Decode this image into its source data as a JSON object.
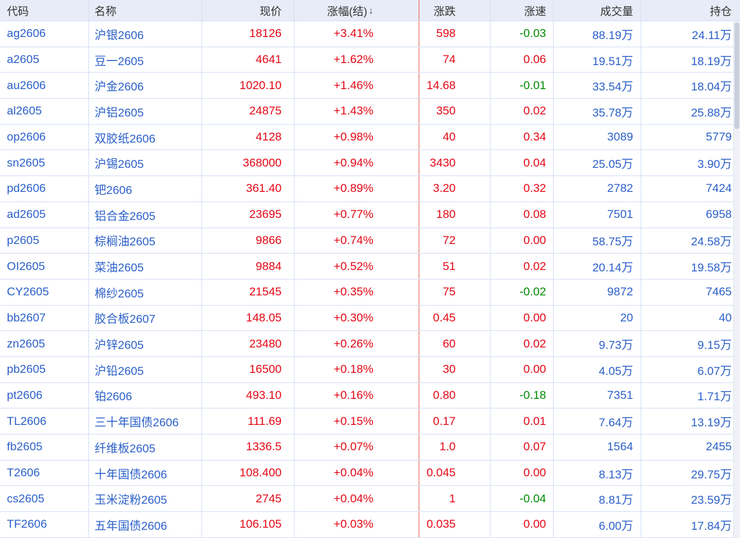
{
  "colors": {
    "header_bg": "#e8ecf8",
    "header_text": "#333333",
    "row_bg": "#ffffff",
    "grid_line": "#d7e1f4",
    "up_red": "#e30613",
    "down_green": "#008a00",
    "blue_text": "#2a5fc9",
    "sort_divider_red": "#e86a6a",
    "scrollbar_track": "#eff1f6",
    "scrollbar_thumb": "#c8cfde"
  },
  "table": {
    "columns": [
      {
        "key": "code",
        "label": "代码",
        "align": "left"
      },
      {
        "key": "name",
        "label": "名称",
        "align": "left"
      },
      {
        "key": "price",
        "label": "现价",
        "align": "right"
      },
      {
        "key": "pct",
        "label": "涨幅(结)",
        "align": "right",
        "sort": "desc",
        "sort_icon": "↓"
      },
      {
        "key": "chg",
        "label": "涨跌",
        "align": "right"
      },
      {
        "key": "speed",
        "label": "涨速",
        "align": "right"
      },
      {
        "key": "vol",
        "label": "成交量",
        "align": "right"
      },
      {
        "key": "oi",
        "label": "持仓",
        "align": "right"
      }
    ],
    "rows": [
      {
        "code": "ag2606",
        "name": "沪银2606",
        "price": "18126",
        "pct": "+3.41%",
        "chg": "598",
        "speed": "-0.03",
        "vol": "88.19万",
        "oi": "24.11万"
      },
      {
        "code": "a2605",
        "name": "豆一2605",
        "price": "4641",
        "pct": "+1.62%",
        "chg": "74",
        "speed": "0.06",
        "vol": "19.51万",
        "oi": "18.19万"
      },
      {
        "code": "au2606",
        "name": "沪金2606",
        "price": "1020.10",
        "pct": "+1.46%",
        "chg": "14.68",
        "speed": "-0.01",
        "vol": "33.54万",
        "oi": "18.04万"
      },
      {
        "code": "al2605",
        "name": "沪铝2605",
        "price": "24875",
        "pct": "+1.43%",
        "chg": "350",
        "speed": "0.02",
        "vol": "35.78万",
        "oi": "25.88万"
      },
      {
        "code": "op2606",
        "name": "双胶纸2606",
        "price": "4128",
        "pct": "+0.98%",
        "chg": "40",
        "speed": "0.34",
        "vol": "3089",
        "oi": "5779"
      },
      {
        "code": "sn2605",
        "name": "沪锡2605",
        "price": "368000",
        "pct": "+0.94%",
        "chg": "3430",
        "speed": "0.04",
        "vol": "25.05万",
        "oi": "3.90万"
      },
      {
        "code": "pd2606",
        "name": "钯2606",
        "price": "361.40",
        "pct": "+0.89%",
        "chg": "3.20",
        "speed": "0.32",
        "vol": "2782",
        "oi": "7424"
      },
      {
        "code": "ad2605",
        "name": "铝合金2605",
        "price": "23695",
        "pct": "+0.77%",
        "chg": "180",
        "speed": "0.08",
        "vol": "7501",
        "oi": "6958"
      },
      {
        "code": "p2605",
        "name": "棕榈油2605",
        "price": "9866",
        "pct": "+0.74%",
        "chg": "72",
        "speed": "0.00",
        "vol": "58.75万",
        "oi": "24.58万"
      },
      {
        "code": "OI2605",
        "name": "菜油2605",
        "price": "9884",
        "pct": "+0.52%",
        "chg": "51",
        "speed": "0.02",
        "vol": "20.14万",
        "oi": "19.58万"
      },
      {
        "code": "CY2605",
        "name": "棉纱2605",
        "price": "21545",
        "pct": "+0.35%",
        "chg": "75",
        "speed": "-0.02",
        "vol": "9872",
        "oi": "7465"
      },
      {
        "code": "bb2607",
        "name": "胶合板2607",
        "price": "148.05",
        "pct": "+0.30%",
        "chg": "0.45",
        "speed": "0.00",
        "vol": "20",
        "oi": "40"
      },
      {
        "code": "zn2605",
        "name": "沪锌2605",
        "price": "23480",
        "pct": "+0.26%",
        "chg": "60",
        "speed": "0.02",
        "vol": "9.73万",
        "oi": "9.15万"
      },
      {
        "code": "pb2605",
        "name": "沪铅2605",
        "price": "16500",
        "pct": "+0.18%",
        "chg": "30",
        "speed": "0.00",
        "vol": "4.05万",
        "oi": "6.07万"
      },
      {
        "code": "pt2606",
        "name": "铂2606",
        "price": "493.10",
        "pct": "+0.16%",
        "chg": "0.80",
        "speed": "-0.18",
        "vol": "7351",
        "oi": "1.71万"
      },
      {
        "code": "TL2606",
        "name": "三十年国债2606",
        "price": "111.69",
        "pct": "+0.15%",
        "chg": "0.17",
        "speed": "0.01",
        "vol": "7.64万",
        "oi": "13.19万"
      },
      {
        "code": "fb2605",
        "name": "纤维板2605",
        "price": "1336.5",
        "pct": "+0.07%",
        "chg": "1.0",
        "speed": "0.07",
        "vol": "1564",
        "oi": "2455"
      },
      {
        "code": "T2606",
        "name": "十年国债2606",
        "price": "108.400",
        "pct": "+0.04%",
        "chg": "0.045",
        "speed": "0.00",
        "vol": "8.13万",
        "oi": "29.75万"
      },
      {
        "code": "cs2605",
        "name": "玉米淀粉2605",
        "price": "2745",
        "pct": "+0.04%",
        "chg": "1",
        "speed": "-0.04",
        "vol": "8.81万",
        "oi": "23.59万"
      },
      {
        "code": "TF2606",
        "name": "五年国债2606",
        "price": "106.105",
        "pct": "+0.03%",
        "chg": "0.035",
        "speed": "0.00",
        "vol": "6.00万",
        "oi": "17.84万"
      }
    ]
  }
}
